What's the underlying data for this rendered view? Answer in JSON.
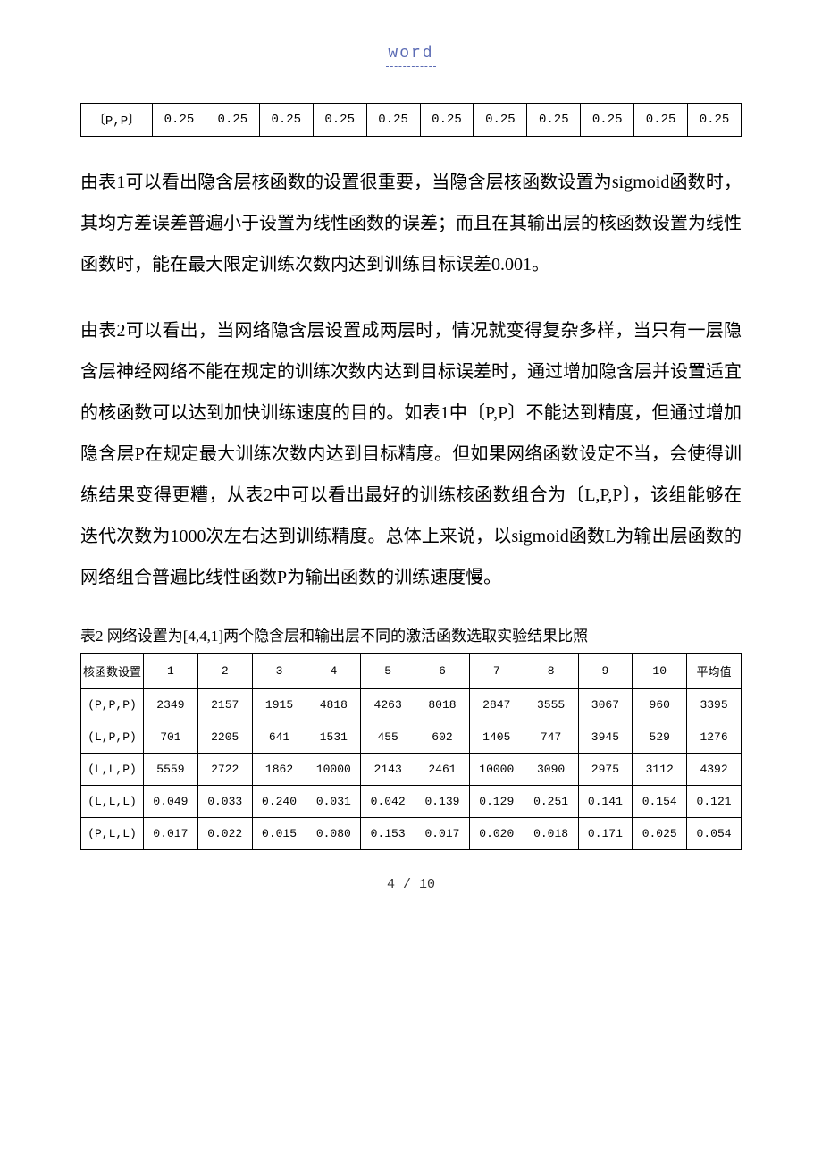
{
  "header": {
    "label": "word"
  },
  "table1": {
    "row_label": "〔P,P〕",
    "cells": [
      "0.25",
      "0.25",
      "0.25",
      "0.25",
      "0.25",
      "0.25",
      "0.25",
      "0.25",
      "0.25",
      "0.25",
      "0.25"
    ]
  },
  "para1": "由表1可以看出隐含层核函数的设置很重要，当隐含层核函数设置为sigmoid函数时，其均方差误差普遍小于设置为线性函数的误差；而且在其输出层的核函数设置为线性函数时，能在最大限定训练次数内达到训练目标误差0.001。",
  "para2": "由表2可以看出，当网络隐含层设置成两层时，情况就变得复杂多样，当只有一层隐含层神经网络不能在规定的训练次数内达到目标误差时，通过增加隐含层并设置适宜的核函数可以达到加快训练速度的目的。如表1中〔P,P〕不能达到精度，但通过增加隐含层P在规定最大训练次数内达到目标精度。但如果网络函数设定不当，会使得训练结果变得更糟，从表2中可以看出最好的训练核函数组合为〔L,P,P〕，该组能够在迭代次数为1000次左右达到训练精度。总体上来说，以sigmoid函数L为输出层函数的网络组合普遍比线性函数P为输出函数的训练速度慢。",
  "table2": {
    "caption": "表2 网络设置为[4,4,1]两个隐含层和输出层不同的激活函数选取实验结果比照",
    "header": [
      "核函数设置",
      "1",
      "2",
      "3",
      "4",
      "5",
      "6",
      "7",
      "8",
      "9",
      "10",
      "平均值"
    ],
    "rows": [
      [
        "(P,P,P)",
        "2349",
        "2157",
        "1915",
        "4818",
        "4263",
        "8018",
        "2847",
        "3555",
        "3067",
        "960",
        "3395"
      ],
      [
        "(L,P,P)",
        "701",
        "2205",
        "641",
        "1531",
        "455",
        "602",
        "1405",
        "747",
        "3945",
        "529",
        "1276"
      ],
      [
        "(L,L,P)",
        "5559",
        "2722",
        "1862",
        "10000",
        "2143",
        "2461",
        "10000",
        "3090",
        "2975",
        "3112",
        "4392"
      ],
      [
        "(L,L,L)",
        "0.049",
        "0.033",
        "0.240",
        "0.031",
        "0.042",
        "0.139",
        "0.129",
        "0.251",
        "0.141",
        "0.154",
        "0.121"
      ],
      [
        "(P,L,L)",
        "0.017",
        "0.022",
        "0.015",
        "0.080",
        "0.153",
        "0.017",
        "0.020",
        "0.018",
        "0.171",
        "0.025",
        "0.054"
      ]
    ]
  },
  "pager": "4 / 10"
}
